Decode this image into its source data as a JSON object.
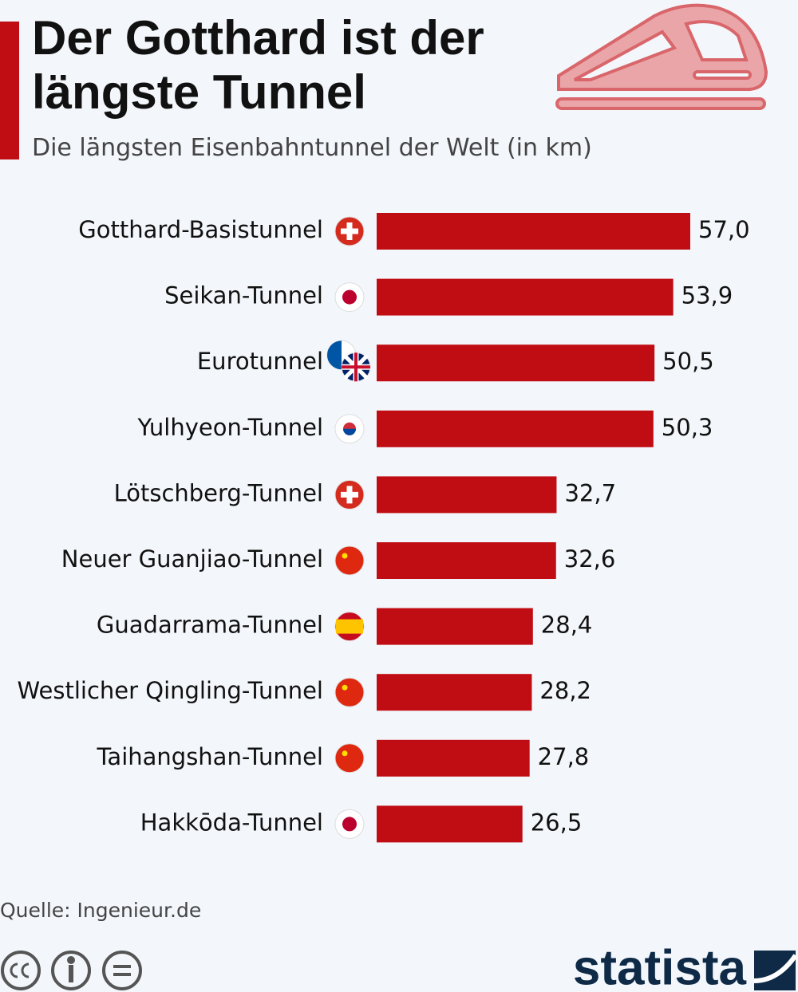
{
  "chart_data": {
    "type": "bar",
    "orientation": "horizontal",
    "title": "Der Gotthard ist der längste Tunnel",
    "subtitle": "Die längsten Eisenbahntunnel der Welt (in km)",
    "categories": [
      "Gotthard-Basistunnel",
      "Seikan-Tunnel",
      "Eurotunnel",
      "Yulhyeon-Tunnel",
      "Lötschberg-Tunnel",
      "Neuer Guanjiao-Tunnel",
      "Guadarrama-Tunnel",
      "Westlicher Qingling-Tunnel",
      "Taihangshan-Tunnel",
      "Hakkōda-Tunnel"
    ],
    "values": [
      57.0,
      53.9,
      50.5,
      50.3,
      32.7,
      32.6,
      28.4,
      28.2,
      27.8,
      26.5
    ],
    "value_labels": [
      "57,0",
      "53,9",
      "50,5",
      "50,3",
      "32,7",
      "32,6",
      "28,4",
      "28,2",
      "27,8",
      "26,5"
    ],
    "color": "#c00d13",
    "source": "Quelle: Ingenieur.de",
    "brand": "statista"
  }
}
